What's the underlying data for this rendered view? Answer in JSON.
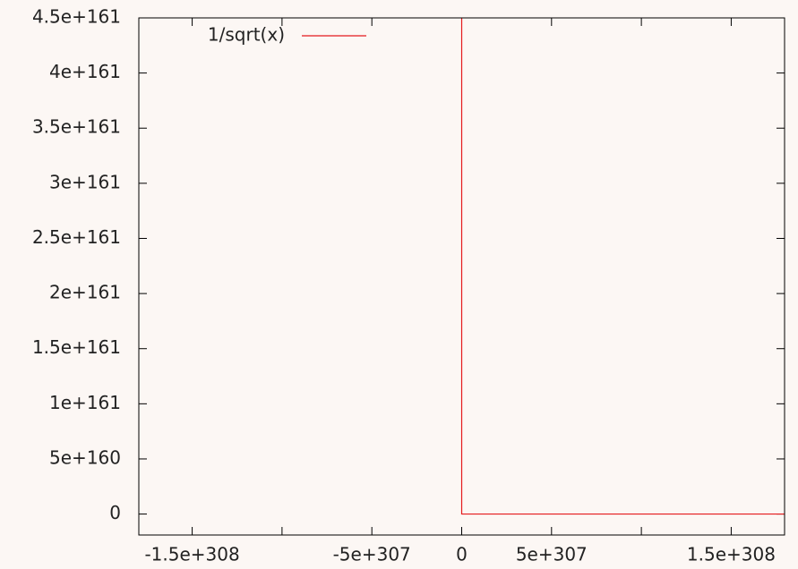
{
  "chart_data": {
    "type": "line",
    "x": [
      0,
      0,
      1.797e+308
    ],
    "series": [
      {
        "name": "1/sqrt(x)",
        "color": "#e41a1c",
        "values": [
          4.5e+161,
          0,
          0
        ]
      }
    ],
    "xlim": [
      -1.797e+308,
      1.797e+308
    ],
    "xticks": [
      {
        "value": -1.5e+308,
        "label": "-1.5e+308"
      },
      {
        "value": -1e+308,
        "label": null
      },
      {
        "value": -5e+307,
        "label": "-5e+307"
      },
      0,
      {
        "value": 5e+307,
        "label": "5e+307"
      },
      {
        "value": 1e+308,
        "label": null
      },
      {
        "value": 1.5e+308,
        "label": "1.5e+308"
      }
    ],
    "ylim": [
      -1.9e+160,
      4.5e+161
    ],
    "yticks": [
      0,
      {
        "value": 5e+160,
        "label": "5e+160"
      },
      {
        "value": 1e+161,
        "label": "1e+161"
      },
      {
        "value": 1.5e+161,
        "label": "1.5e+161"
      },
      {
        "value": 2e+161,
        "label": "2e+161"
      },
      {
        "value": 2.5e+161,
        "label": "2.5e+161"
      },
      {
        "value": 3e+161,
        "label": "3e+161"
      },
      {
        "value": 3.5e+161,
        "label": "3.5e+161"
      },
      {
        "value": 4e+161,
        "label": "4e+161"
      },
      {
        "value": 4.5e+161,
        "label": "4.5e+161"
      }
    ],
    "grid": false,
    "legend": "top-left"
  }
}
